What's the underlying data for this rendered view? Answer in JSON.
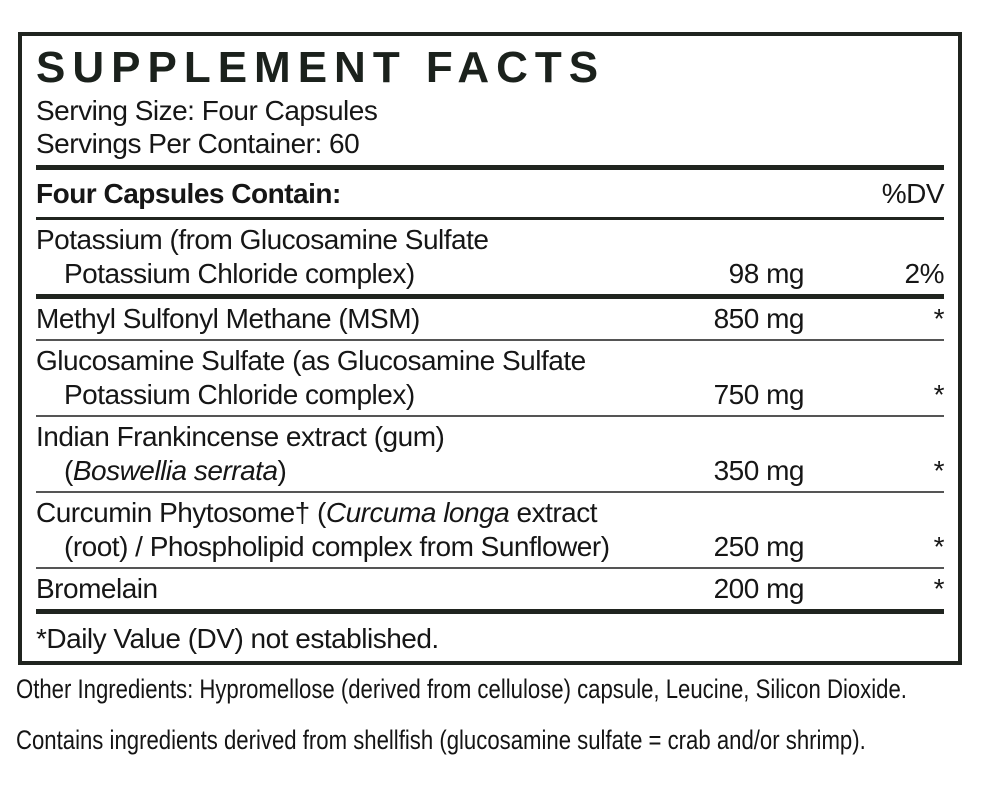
{
  "facts": {
    "title": "SUPPLEMENT FACTS",
    "serving_size": "Serving Size: Four Capsules",
    "servings_per_container": "Servings Per Container: 60",
    "header": {
      "left": "Four Capsules Contain:",
      "right": "%DV"
    },
    "rows": [
      {
        "lines": [
          {
            "pre": "Potassium (from Glucosamine Sulfate"
          },
          {
            "pre": "Potassium Chloride complex)"
          }
        ],
        "amount": "98 mg",
        "dv": "2%"
      },
      {
        "lines": [
          {
            "pre": "Methyl Sulfonyl Methane (MSM)"
          }
        ],
        "amount": "850 mg",
        "dv": "*"
      },
      {
        "lines": [
          {
            "pre": "Glucosamine Sulfate (as Glucosamine Sulfate"
          },
          {
            "pre": "Potassium Chloride complex)"
          }
        ],
        "amount": "750 mg",
        "dv": "*"
      },
      {
        "lines": [
          {
            "pre": "Indian Frankincense extract (gum)"
          },
          {
            "pre": "(",
            "italic": "Boswellia serrata",
            "post": ")"
          }
        ],
        "amount": "350 mg",
        "dv": "*"
      },
      {
        "lines": [
          {
            "pre": "Curcumin Phytosome† (",
            "italic": "Curcuma longa",
            "post": " extract"
          },
          {
            "pre": "(root) / Phospholipid complex from Sunflower)"
          }
        ],
        "amount": "250 mg",
        "dv": "*"
      },
      {
        "lines": [
          {
            "pre": "Bromelain"
          }
        ],
        "amount": "200 mg",
        "dv": "*"
      }
    ],
    "footnote": "*Daily Value (DV) not established."
  },
  "other_ingredients": "Other Ingredients: Hypromellose (derived from cellulose) capsule, Leucine, Silicon Dioxide.",
  "allergen_statement": "Contains ingredients derived from shellfish (glucosamine sulfate = crab and/or shrimp).",
  "colors": {
    "ink": "#20241f",
    "thin_rule": "#555555",
    "background": "#ffffff"
  }
}
